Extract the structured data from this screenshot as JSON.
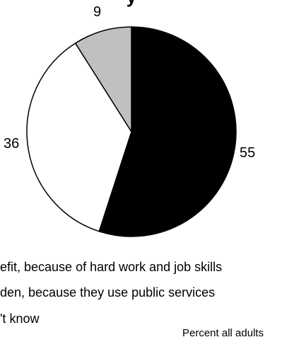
{
  "chart_data": {
    "type": "pie",
    "title": "",
    "slices": [
      {
        "label": "...efit, because of hard work and job skills",
        "value": 55,
        "value_label": "55",
        "color": "#000000"
      },
      {
        "label": "...den, because they use public services",
        "value": 36,
        "value_label": "36",
        "color": "#ffffff"
      },
      {
        "label": "...'t know",
        "value": 9,
        "value_label": "9",
        "color": "#c0c0c0"
      }
    ],
    "legend_lines": [
      "efit, because of hard work and job skills",
      "den, because they use public services",
      "'t know"
    ],
    "note": "Percent all adults",
    "start_angle_deg": 0,
    "direction": "clockwise",
    "stroke_color": "#000000"
  }
}
